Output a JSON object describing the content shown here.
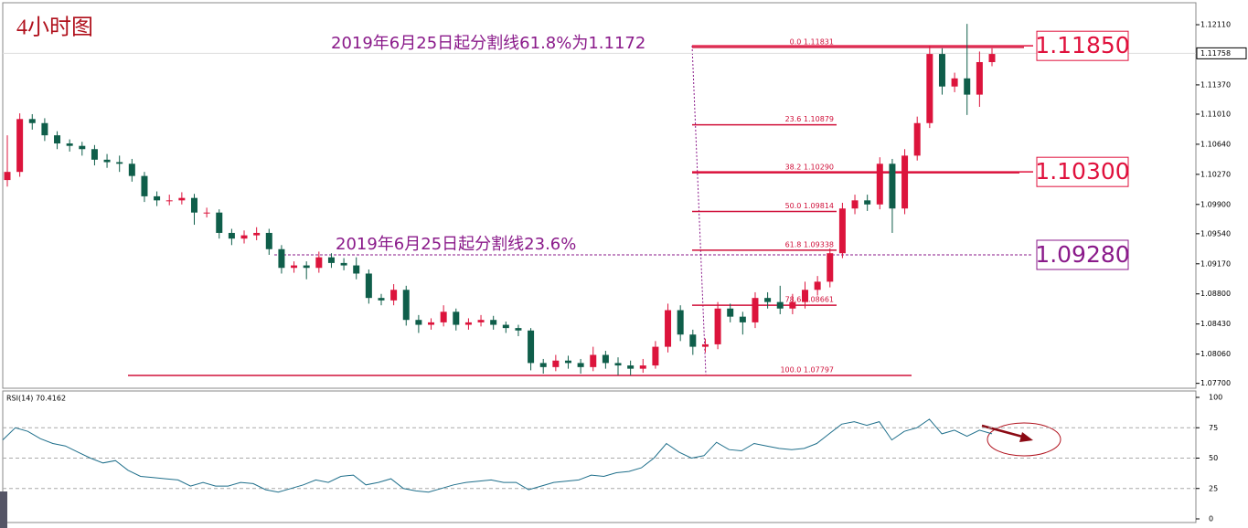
{
  "chart_data": {
    "type": "candlestick",
    "title": "4小时图",
    "annotations": [
      "2019年6月25日起分割线61.8%为1.1172",
      "2019年6月25日起分割线23.6%"
    ],
    "up_color": "#dc143c",
    "down_color": "#0f5e4a",
    "ylim": [
      1.0764,
      1.1238
    ],
    "yticks": [
      {
        "value": 1.1211,
        "label": "1.12110"
      },
      {
        "value": 1.1137,
        "label": "1.11370"
      },
      {
        "value": 1.1101,
        "label": "1.11010"
      },
      {
        "value": 1.1064,
        "label": "1.10640"
      },
      {
        "value": 1.1027,
        "label": "1.10270"
      },
      {
        "value": 1.099,
        "label": "1.09900"
      },
      {
        "value": 1.0954,
        "label": "1.09540"
      },
      {
        "value": 1.0917,
        "label": "1.09170"
      },
      {
        "value": 1.088,
        "label": "1.08800"
      },
      {
        "value": 1.0843,
        "label": "1.08430"
      },
      {
        "value": 1.0806,
        "label": "1.08060"
      },
      {
        "value": 1.077,
        "label": "1.07700"
      }
    ],
    "last_price": {
      "value": 1.11758,
      "label": "1.11758"
    },
    "candles": [
      [
        1.102,
        1.1075,
        1.1012,
        1.103
      ],
      [
        1.103,
        1.1102,
        1.1024,
        1.1095
      ],
      [
        1.1095,
        1.1101,
        1.1082,
        1.109
      ],
      [
        1.109,
        1.1096,
        1.1068,
        1.1075
      ],
      [
        1.1075,
        1.108,
        1.1058,
        1.1065
      ],
      [
        1.1065,
        1.107,
        1.1055,
        1.1062
      ],
      [
        1.1062,
        1.1067,
        1.105,
        1.1058
      ],
      [
        1.1058,
        1.1063,
        1.1038,
        1.1045
      ],
      [
        1.1045,
        1.1052,
        1.1035,
        1.1042
      ],
      [
        1.1042,
        1.105,
        1.103,
        1.104
      ],
      [
        1.104,
        1.1046,
        1.1018,
        1.1025
      ],
      [
        1.1025,
        1.103,
        1.0993,
        1.1
      ],
      [
        1.1,
        1.1006,
        1.0988,
        1.0995
      ],
      [
        1.0995,
        1.1002,
        1.0989,
        1.0995
      ],
      [
        1.0995,
        1.1005,
        1.099,
        1.0998
      ],
      [
        1.0998,
        1.1003,
        1.0965,
        1.098
      ],
      [
        1.098,
        1.0986,
        1.0974,
        1.098
      ],
      [
        1.098,
        1.0984,
        1.0948,
        1.0955
      ],
      [
        1.0955,
        1.096,
        1.094,
        1.0948
      ],
      [
        1.0948,
        1.0958,
        1.0942,
        1.0952
      ],
      [
        1.0952,
        1.0962,
        1.0946,
        1.0955
      ],
      [
        1.0955,
        1.096,
        1.0928,
        1.0935
      ],
      [
        1.0935,
        1.094,
        1.0905,
        1.0912
      ],
      [
        1.0912,
        1.092,
        1.0906,
        1.0915
      ],
      [
        1.0915,
        1.092,
        1.0898,
        1.0912
      ],
      [
        1.0912,
        1.0932,
        1.0906,
        1.0925
      ],
      [
        1.0925,
        1.093,
        1.0912,
        1.0918
      ],
      [
        1.0918,
        1.0924,
        1.0909,
        1.0915
      ],
      [
        1.0915,
        1.0925,
        1.0898,
        1.0905
      ],
      [
        1.0905,
        1.091,
        1.0868,
        1.0875
      ],
      [
        1.0875,
        1.088,
        1.0866,
        1.0872
      ],
      [
        1.0872,
        1.0892,
        1.0866,
        1.0885
      ],
      [
        1.0885,
        1.089,
        1.0841,
        1.0848
      ],
      [
        1.0848,
        1.0854,
        1.0832,
        1.0842
      ],
      [
        1.0842,
        1.085,
        1.0836,
        1.0845
      ],
      [
        1.0845,
        1.0866,
        1.084,
        1.0858
      ],
      [
        1.0858,
        1.0862,
        1.0835,
        1.0842
      ],
      [
        1.0842,
        1.085,
        1.0836,
        1.0845
      ],
      [
        1.0845,
        1.0854,
        1.084,
        1.0848
      ],
      [
        1.0848,
        1.0853,
        1.0836,
        1.0842
      ],
      [
        1.0842,
        1.0846,
        1.0832,
        1.0838
      ],
      [
        1.0838,
        1.0842,
        1.0828,
        1.0835
      ],
      [
        1.0835,
        1.0838,
        1.0786,
        1.0795
      ],
      [
        1.0795,
        1.08,
        1.0782,
        1.079
      ],
      [
        1.079,
        1.0805,
        1.0785,
        1.0798
      ],
      [
        1.0798,
        1.0804,
        1.0788,
        1.0795
      ],
      [
        1.0795,
        1.08,
        1.0782,
        1.079
      ],
      [
        1.079,
        1.0815,
        1.0785,
        1.0805
      ],
      [
        1.0805,
        1.081,
        1.0788,
        1.0795
      ],
      [
        1.0795,
        1.0802,
        1.078,
        1.0792
      ],
      [
        1.0792,
        1.0798,
        1.078,
        1.0788
      ],
      [
        1.0788,
        1.08,
        1.0783,
        1.0792
      ],
      [
        1.0792,
        1.0822,
        1.0788,
        1.0815
      ],
      [
        1.0815,
        1.0868,
        1.0808,
        1.086
      ],
      [
        1.086,
        1.0866,
        1.0822,
        1.083
      ],
      [
        1.083,
        1.0836,
        1.0805,
        1.0815
      ],
      [
        1.0815,
        1.0825,
        1.0808,
        1.0818
      ],
      [
        1.0818,
        1.087,
        1.0812,
        1.0862
      ],
      [
        1.0862,
        1.0868,
        1.0845,
        1.0852
      ],
      [
        1.0852,
        1.0858,
        1.083,
        1.0845
      ],
      [
        1.0845,
        1.0882,
        1.0838,
        1.0875
      ],
      [
        1.0875,
        1.0882,
        1.0862,
        1.087
      ],
      [
        1.087,
        1.089,
        1.0855,
        1.0862
      ],
      [
        1.0862,
        1.088,
        1.0855,
        1.087
      ],
      [
        1.087,
        1.0895,
        1.0862,
        1.0885
      ],
      [
        1.0885,
        1.0902,
        1.0878,
        1.0895
      ],
      [
        1.0895,
        1.0936,
        1.0888,
        1.093
      ],
      [
        1.093,
        1.0992,
        1.0924,
        1.0985
      ],
      [
        1.0985,
        1.1002,
        1.0978,
        1.0995
      ],
      [
        1.0995,
        1.1002,
        1.0982,
        1.099
      ],
      [
        1.099,
        1.1048,
        1.0984,
        1.104
      ],
      [
        1.104,
        1.1046,
        1.0955,
        1.0985
      ],
      [
        1.0985,
        1.1058,
        1.0978,
        1.105
      ],
      [
        1.105,
        1.1098,
        1.1044,
        1.109
      ],
      [
        1.109,
        1.1185,
        1.1084,
        1.1175
      ],
      [
        1.1175,
        1.1182,
        1.1125,
        1.1135
      ],
      [
        1.1135,
        1.1152,
        1.1128,
        1.1145
      ],
      [
        1.1145,
        1.1212,
        1.11,
        1.1125
      ],
      [
        1.1125,
        1.1178,
        1.111,
        1.1165
      ],
      [
        1.1165,
        1.1182,
        1.116,
        1.1175
      ]
    ],
    "fib_levels": [
      {
        "label": "0.0  1.11831",
        "value": 1.11831
      },
      {
        "label": "23.6  1.10879",
        "value": 1.10879
      },
      {
        "label": "38.2  1.10290",
        "value": 1.1029
      },
      {
        "label": "50.0  1.09814",
        "value": 1.09814
      },
      {
        "label": "61.8  1.09338",
        "value": 1.09338
      },
      {
        "label": "78.6  1.08661",
        "value": 1.08661
      },
      {
        "label": "100.0  1.07797",
        "value": 1.07797
      }
    ],
    "fib_color": "#d0103a",
    "levels": [
      {
        "label": "1.11850",
        "value": 1.1185,
        "color": "#e0103c"
      },
      {
        "label": "1.10300",
        "value": 1.103,
        "color": "#e0103c"
      },
      {
        "label": "1.09280",
        "value": 1.0928,
        "color": "#8a1a8a"
      }
    ],
    "rsi": {
      "label": "RSI(14) 70.4162",
      "color": "#1f6f8b",
      "ylim": [
        0,
        100
      ],
      "yticks": [
        100,
        75,
        50,
        25,
        0
      ],
      "values": [
        65,
        75,
        72,
        66,
        62,
        60,
        55,
        50,
        46,
        48,
        40,
        35,
        34,
        33,
        32,
        27,
        30,
        27,
        27,
        30,
        29,
        24,
        22,
        25,
        28,
        32,
        30,
        35,
        36,
        28,
        30,
        33,
        25,
        23,
        22,
        25,
        28,
        30,
        31,
        32,
        30,
        30,
        24,
        27,
        30,
        31,
        32,
        36,
        35,
        38,
        39,
        42,
        50,
        62,
        55,
        50,
        52,
        63,
        57,
        56,
        62,
        60,
        58,
        57,
        58,
        62,
        70,
        78,
        80,
        77,
        80,
        65,
        72,
        75,
        82,
        70,
        73,
        68,
        73,
        70
      ]
    }
  }
}
